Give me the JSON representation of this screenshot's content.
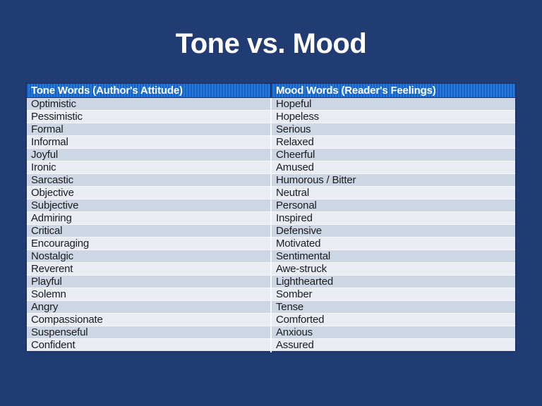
{
  "slide": {
    "title": "Tone vs. Mood"
  },
  "table": {
    "headers": [
      "Tone Words (Author's Attitude)",
      "Mood Words (Reader's Feelings)"
    ],
    "rows": [
      [
        "Optimistic",
        "Hopeful"
      ],
      [
        "Pessimistic",
        "Hopeless"
      ],
      [
        "Formal",
        "Serious"
      ],
      [
        "Informal",
        "Relaxed"
      ],
      [
        "Joyful",
        "Cheerful"
      ],
      [
        "Ironic",
        "Amused"
      ],
      [
        "Sarcastic",
        "Humorous / Bitter"
      ],
      [
        "Objective",
        "Neutral"
      ],
      [
        "Subjective",
        "Personal"
      ],
      [
        "Admiring",
        "Inspired"
      ],
      [
        "Critical",
        "Defensive"
      ],
      [
        "Encouraging",
        "Motivated"
      ],
      [
        "Nostalgic",
        "Sentimental"
      ],
      [
        "Reverent",
        "Awe-struck"
      ],
      [
        "Playful",
        "Lighthearted"
      ],
      [
        "Solemn",
        "Somber"
      ],
      [
        "Angry",
        "Tense"
      ],
      [
        "Compassionate",
        "Comforted"
      ],
      [
        "Suspenseful",
        "Anxious"
      ],
      [
        "Confident",
        "Assured"
      ]
    ]
  },
  "colors": {
    "background": "#213B73",
    "table_border": "#1B356B",
    "header_blue_dark": "#1463C4",
    "header_blue_light": "#2979DB",
    "header_text": "#FFFFFF",
    "row_dark": "#CDD6E4",
    "row_light": "#E9ECF3",
    "cell_text": "#1C1C1E",
    "title_text": "#FFFFFF"
  }
}
